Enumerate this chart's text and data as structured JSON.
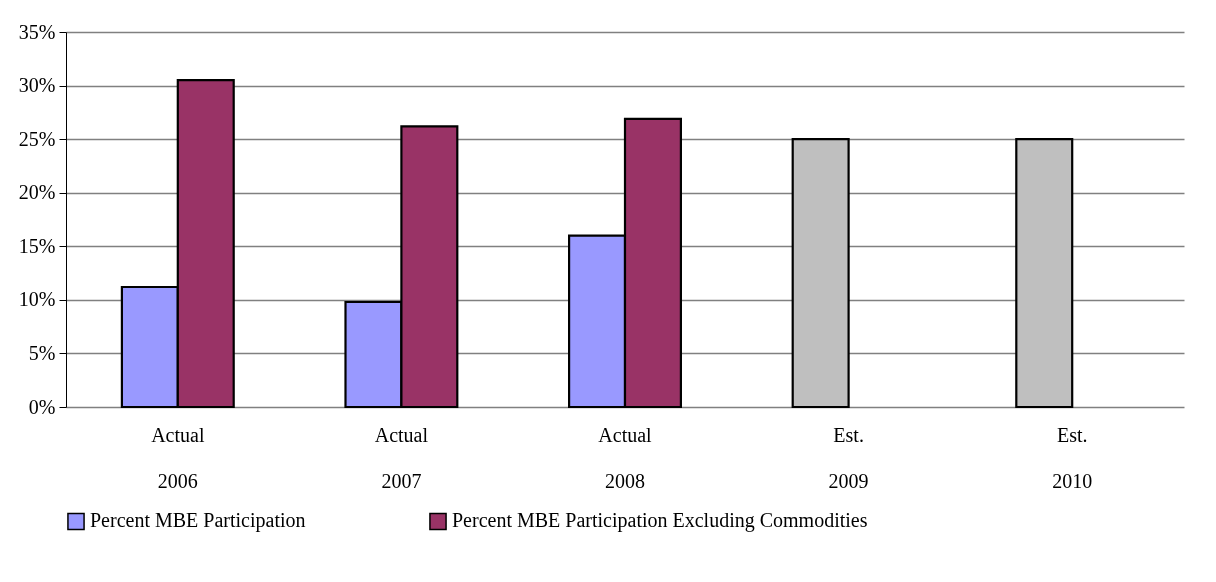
{
  "chart_data": {
    "type": "bar",
    "categories": [
      "Actual 2006",
      "Actual 2007",
      "Actual 2008",
      "Est. 2009",
      "Est. 2010"
    ],
    "series": [
      {
        "name": "Percent MBE Participation",
        "color": "#9999ff",
        "colors": [
          "#9999ff",
          "#9999ff",
          "#9999ff",
          "#bfbfbf",
          "#bfbfbf"
        ],
        "values": [
          11.2,
          9.8,
          16.0,
          25,
          25
        ]
      },
      {
        "name": "Percent MBE Participation Excluding Commodities",
        "color": "#993366",
        "values": [
          30.5,
          26.2,
          26.9,
          null,
          null
        ]
      }
    ],
    "ylim": [
      0,
      35
    ],
    "yticks": [
      {
        "value": 0,
        "label": "0%"
      },
      {
        "value": 5,
        "label": "5%"
      },
      {
        "value": 10,
        "label": "10%"
      },
      {
        "value": 15,
        "label": "15%"
      },
      {
        "value": 20,
        "label": "20%"
      },
      {
        "value": 25,
        "label": "25%"
      },
      {
        "value": 30,
        "label": "30%"
      },
      {
        "value": 35,
        "label": "35%"
      }
    ],
    "grid": "y",
    "legend": "bottom"
  }
}
